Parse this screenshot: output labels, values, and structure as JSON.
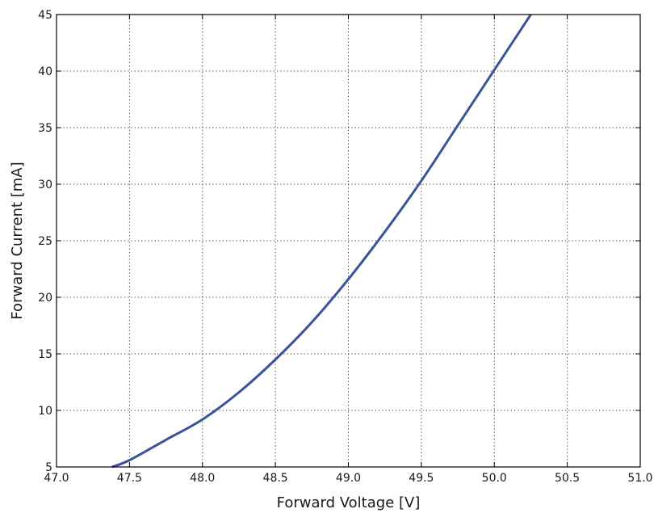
{
  "chart_data": {
    "type": "line",
    "title": "",
    "xlabel": "Forward Voltage [V]",
    "ylabel": "Forward Current [mA]",
    "xlim": [
      47.0,
      51.0
    ],
    "ylim": [
      5,
      45
    ],
    "xticks": [
      "47.0",
      "47.5",
      "48.0",
      "48.5",
      "49.0",
      "49.5",
      "50.0",
      "50.5",
      "51.0"
    ],
    "yticks": [
      "5",
      "10",
      "15",
      "20",
      "25",
      "30",
      "35",
      "40",
      "45"
    ],
    "grid": true,
    "legend": "none",
    "series_color": "#3a539b",
    "series": [
      {
        "x": [
          47.38,
          47.5,
          47.75,
          48.0,
          48.25,
          48.5,
          48.75,
          49.0,
          49.25,
          49.5,
          49.75,
          50.0,
          50.25
        ],
        "y": [
          5.0,
          5.6,
          7.4,
          9.2,
          11.6,
          14.5,
          17.8,
          21.6,
          25.8,
          30.3,
          35.2,
          40.1,
          45.0
        ]
      }
    ]
  }
}
